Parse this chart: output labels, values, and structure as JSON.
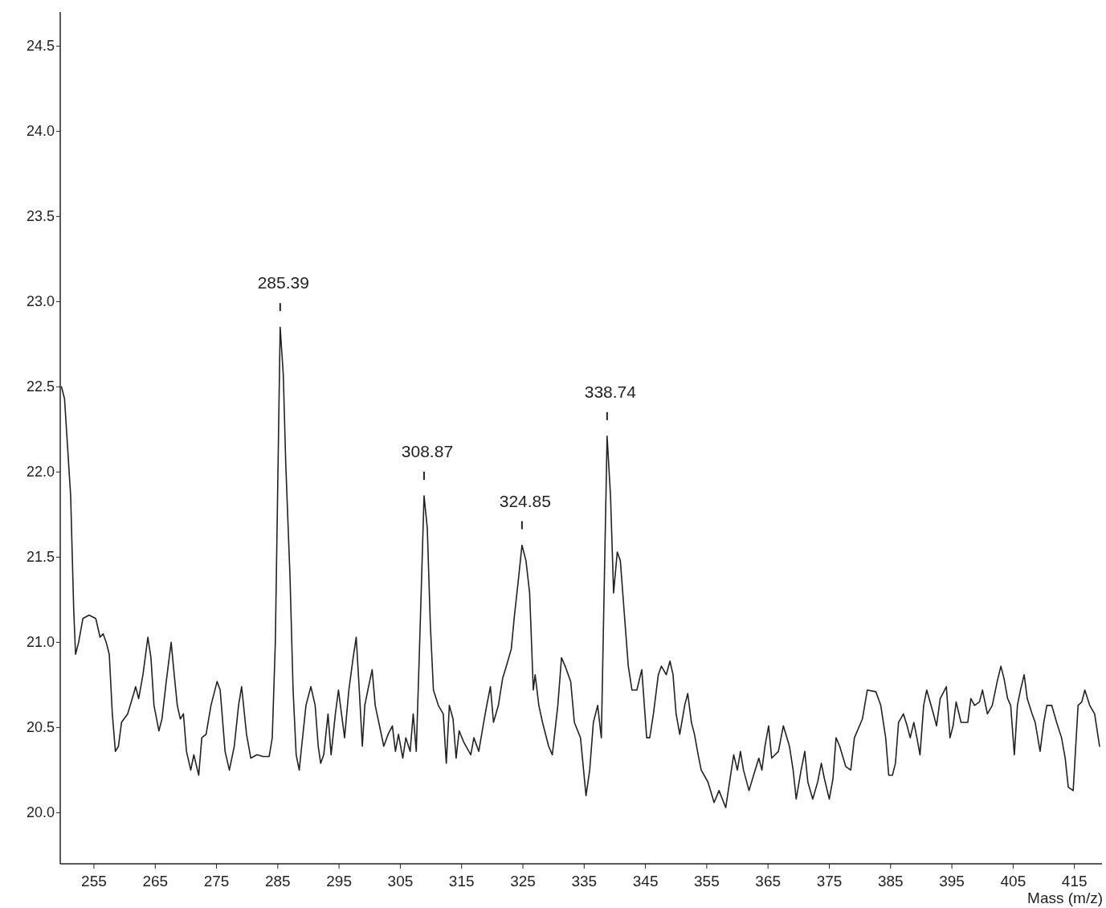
{
  "chart_data": {
    "type": "line",
    "xlabel": "Mass (m/z)",
    "xlim": [
      249.5,
      419.5
    ],
    "ylim": [
      19.7,
      24.7
    ],
    "xticks": [
      255,
      265,
      275,
      285,
      295,
      305,
      315,
      325,
      335,
      345,
      355,
      365,
      375,
      385,
      395,
      405,
      415
    ],
    "yticks": [
      {
        "value": 20,
        "label": "20.0"
      },
      {
        "value": 20.5,
        "label": "20.5"
      },
      {
        "value": 21,
        "label": "21.0"
      },
      {
        "value": 21.5,
        "label": "21.5"
      },
      {
        "value": 22,
        "label": "22.0"
      },
      {
        "value": 22.5,
        "label": "22.5"
      },
      {
        "value": 23,
        "label": "23.0"
      },
      {
        "value": 23.5,
        "label": "23.5"
      },
      {
        "value": 24,
        "label": "24.0"
      },
      {
        "value": 24.5,
        "label": "24.5"
      }
    ],
    "marker": "none",
    "line_style": "solid",
    "annotations": [
      {
        "text": "285.39",
        "x": 285.39,
        "y": 22.85
      },
      {
        "text": "308.87",
        "x": 308.87,
        "y": 21.86
      },
      {
        "text": "324.85",
        "x": 324.85,
        "y": 21.57
      },
      {
        "text": "338.74",
        "x": 338.74,
        "y": 22.21
      }
    ],
    "series": [
      {
        "color": "#222222",
        "x": [
          249.7,
          250.2,
          251.2,
          251.7,
          252.0,
          252.5,
          253.2,
          254.2,
          255.3,
          256.0,
          256.5,
          257.0,
          257.5,
          258.0,
          258.5,
          259.0,
          259.5,
          260.5,
          261.5,
          261.8,
          262.3,
          263.0,
          263.8,
          264.3,
          264.8,
          265.6,
          266.1,
          266.8,
          267.6,
          268.1,
          268.6,
          269.1,
          269.6,
          270.1,
          270.8,
          271.3,
          272.1,
          272.6,
          273.3,
          274.1,
          275.1,
          275.6,
          276.4,
          277.1,
          277.9,
          278.6,
          279.1,
          279.9,
          280.6,
          281.6,
          282.6,
          283.6,
          284.1,
          284.6,
          285.39,
          285.9,
          286.3,
          287.0,
          287.5,
          288.0,
          288.5,
          288.9,
          289.6,
          290.4,
          291.1,
          291.6,
          292.0,
          292.5,
          293.2,
          293.7,
          294.4,
          294.9,
          295.4,
          295.9,
          296.6,
          297.3,
          297.8,
          298.3,
          298.8,
          299.2,
          299.7,
          300.4,
          300.9,
          301.6,
          302.3,
          303.0,
          303.7,
          304.2,
          304.7,
          305.4,
          305.9,
          306.6,
          307.1,
          307.6,
          308.2,
          308.87,
          309.4,
          309.9,
          310.4,
          311.2,
          312.0,
          312.5,
          313.0,
          313.6,
          314.1,
          314.6,
          315.4,
          316.5,
          317.0,
          317.8,
          318.6,
          319.1,
          319.7,
          320.2,
          321.0,
          321.7,
          322.3,
          323.1,
          323.6,
          324.3,
          324.85,
          325.5,
          326.1,
          326.7,
          327.0,
          327.6,
          328.2,
          329.2,
          329.8,
          330.7,
          331.3,
          331.9,
          332.8,
          333.4,
          334.4,
          335.3,
          335.9,
          336.5,
          337.2,
          337.8,
          338.74,
          339.3,
          339.8,
          340.4,
          340.9,
          341.4,
          342.2,
          342.8,
          343.6,
          344.4,
          345.2,
          345.7,
          346.3,
          347.1,
          347.6,
          348.4,
          349.0,
          349.5,
          350.0,
          350.6,
          351.4,
          351.9,
          352.5,
          353.0,
          353.6,
          354.1,
          355.2,
          356.2,
          357.0,
          358.1,
          358.6,
          359.4,
          360.0,
          360.5,
          361.0,
          361.9,
          362.9,
          363.5,
          364.0,
          364.5,
          365.1,
          365.6,
          366.7,
          367.5,
          368.5,
          369.1,
          369.6,
          370.4,
          371.0,
          371.5,
          372.3,
          373.1,
          373.7,
          374.2,
          375.0,
          375.6,
          376.1,
          376.7,
          377.7,
          378.5,
          379.1,
          380.4,
          381.2,
          382.6,
          383.4,
          384.2,
          384.7,
          385.3,
          385.8,
          386.3,
          387.1,
          387.7,
          388.2,
          388.8,
          389.3,
          389.8,
          390.4,
          390.9,
          392.0,
          392.5,
          393.1,
          394.1,
          394.7,
          395.2,
          395.7,
          396.5,
          397.6,
          398.1,
          398.7,
          399.5,
          400.0,
          400.8,
          401.6,
          402.4,
          403.0,
          403.5,
          404.1,
          404.6,
          405.2,
          405.7,
          406.2,
          406.8,
          407.3,
          408.1,
          408.6,
          409.4,
          410.0,
          410.5,
          411.3,
          412.1,
          412.9,
          413.5,
          414.0,
          414.8,
          415.6,
          416.2,
          416.7,
          417.5,
          418.3,
          419.1
        ],
        "values": [
          22.5,
          22.43,
          21.86,
          21.19,
          20.93,
          21.0,
          21.14,
          21.16,
          21.14,
          21.03,
          21.05,
          21.0,
          20.93,
          20.58,
          20.36,
          20.39,
          20.53,
          20.58,
          20.7,
          20.74,
          20.67,
          20.81,
          21.03,
          20.91,
          20.63,
          20.48,
          20.55,
          20.77,
          21.0,
          20.81,
          20.63,
          20.55,
          20.58,
          20.36,
          20.25,
          20.34,
          20.22,
          20.44,
          20.46,
          20.63,
          20.77,
          20.72,
          20.36,
          20.25,
          20.39,
          20.63,
          20.74,
          20.46,
          20.32,
          20.34,
          20.33,
          20.33,
          20.44,
          21.0,
          22.85,
          22.57,
          22.05,
          21.38,
          20.72,
          20.34,
          20.25,
          20.39,
          20.63,
          20.74,
          20.63,
          20.39,
          20.29,
          20.34,
          20.58,
          20.34,
          20.58,
          20.72,
          20.58,
          20.44,
          20.72,
          20.91,
          21.03,
          20.72,
          20.39,
          20.63,
          20.72,
          20.84,
          20.63,
          20.51,
          20.39,
          20.46,
          20.51,
          20.36,
          20.46,
          20.32,
          20.44,
          20.36,
          20.58,
          20.36,
          21.05,
          21.86,
          21.67,
          21.1,
          20.72,
          20.63,
          20.58,
          20.29,
          20.63,
          20.55,
          20.32,
          20.48,
          20.41,
          20.34,
          20.44,
          20.36,
          20.53,
          20.63,
          20.74,
          20.53,
          20.63,
          20.79,
          20.86,
          20.96,
          21.15,
          21.38,
          21.57,
          21.48,
          21.29,
          20.72,
          20.81,
          20.63,
          20.53,
          20.39,
          20.34,
          20.63,
          20.91,
          20.86,
          20.77,
          20.53,
          20.44,
          20.1,
          20.25,
          20.53,
          20.63,
          20.44,
          22.21,
          21.86,
          21.29,
          21.53,
          21.48,
          21.24,
          20.86,
          20.72,
          20.72,
          20.84,
          20.44,
          20.44,
          20.58,
          20.81,
          20.86,
          20.81,
          20.89,
          20.81,
          20.58,
          20.46,
          20.63,
          20.7,
          20.53,
          20.46,
          20.34,
          20.25,
          20.18,
          20.06,
          20.13,
          20.03,
          20.15,
          20.34,
          20.25,
          20.36,
          20.25,
          20.13,
          20.25,
          20.32,
          20.25,
          20.39,
          20.51,
          20.32,
          20.36,
          20.51,
          20.39,
          20.25,
          20.08,
          20.25,
          20.36,
          20.18,
          20.08,
          20.18,
          20.29,
          20.2,
          20.08,
          20.2,
          20.44,
          20.39,
          20.27,
          20.25,
          20.44,
          20.55,
          20.72,
          20.71,
          20.63,
          20.44,
          20.22,
          20.22,
          20.29,
          20.53,
          20.58,
          20.51,
          20.44,
          20.53,
          20.44,
          20.34,
          20.63,
          20.72,
          20.58,
          20.51,
          20.67,
          20.74,
          20.44,
          20.51,
          20.65,
          20.53,
          20.53,
          20.67,
          20.63,
          20.65,
          20.72,
          20.58,
          20.63,
          20.77,
          20.86,
          20.79,
          20.67,
          20.63,
          20.34,
          20.63,
          20.72,
          20.81,
          20.67,
          20.58,
          20.53,
          20.36,
          20.53,
          20.63,
          20.63,
          20.53,
          20.44,
          20.32,
          20.15,
          20.13,
          20.63,
          20.65,
          20.72,
          20.63,
          20.58,
          20.39
        ]
      }
    ]
  }
}
